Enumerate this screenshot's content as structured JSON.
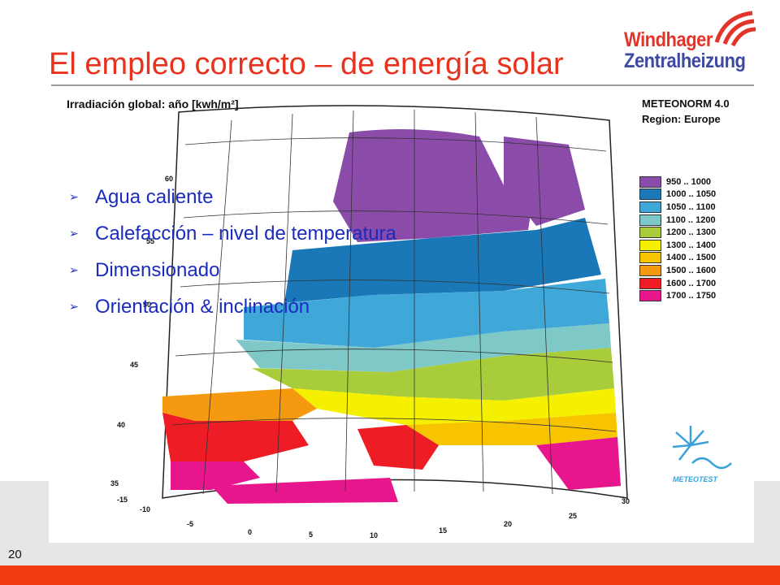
{
  "slide": {
    "title": "El empleo correcto – de energía solar",
    "page_number": "20",
    "bullets": [
      "Agua caliente",
      "Calefacción – nivel de temperatura",
      "Dimensionado",
      "Orientación & inclinación"
    ]
  },
  "logo": {
    "line1": "Windhager",
    "line2": "Zentralheizung"
  },
  "map": {
    "caption": "Irradiación global: año [kwh/m²]",
    "source_line1": "METEONORM 4.0",
    "source_line2": "Region: Europe",
    "legend": [
      {
        "label": "950 .. 1000",
        "color": "#8a4ca8"
      },
      {
        "label": "1000 .. 1050",
        "color": "#1a78b8"
      },
      {
        "label": "1050 .. 1100",
        "color": "#3fa8d8"
      },
      {
        "label": "1100 .. 1200",
        "color": "#7fc8c8"
      },
      {
        "label": "1200 .. 1300",
        "color": "#a8cc3a"
      },
      {
        "label": "1300 .. 1400",
        "color": "#f4f000"
      },
      {
        "label": "1400 .. 1500",
        "color": "#f8c400"
      },
      {
        "label": "1500 .. 1600",
        "color": "#f59a10"
      },
      {
        "label": "1600 .. 1700",
        "color": "#ee1c24"
      },
      {
        "label": "1700 .. 1750",
        "color": "#e8168c"
      }
    ],
    "lat_ticks": [
      "60",
      "55",
      "50",
      "45",
      "40",
      "35"
    ],
    "lon_ticks": [
      "-15",
      "-10",
      "-5",
      "0",
      "5",
      "10",
      "15",
      "20",
      "25",
      "30"
    ],
    "meteotest_label": "METEOTEST"
  },
  "colors": {
    "title": "#e8321e",
    "bullet_text": "#1a2bbf",
    "footer_bar": "#f03a0f"
  }
}
